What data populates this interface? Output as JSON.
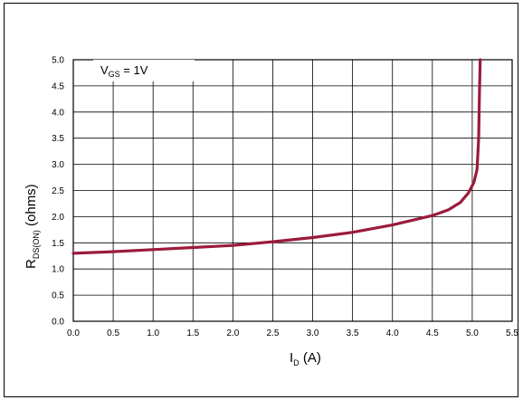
{
  "chart_data": {
    "type": "line",
    "title": "",
    "xlabel": {
      "main": "I",
      "sub": "D",
      "rest": " (A)"
    },
    "ylabel": {
      "main": "R",
      "sub": "DS(ON)",
      "rest": " (ohms)"
    },
    "annotation": {
      "main": "V",
      "sub": "GS",
      "rest": " = 1V"
    },
    "xlim": [
      0,
      5.5
    ],
    "ylim": [
      0,
      5
    ],
    "x_ticks": [
      "0.0",
      "0.5",
      "1.0",
      "1.5",
      "2.0",
      "2.5",
      "3.0",
      "3.5",
      "4.0",
      "4.5",
      "5.0",
      "5.5"
    ],
    "y_ticks": [
      "0.0",
      "0.5",
      "1.0",
      "1.5",
      "2.0",
      "2.5",
      "3.0",
      "3.5",
      "4.0",
      "4.5",
      "5.0"
    ],
    "grid": true,
    "line_color": "#9b1b3c",
    "series": [
      {
        "x": [
          0.0,
          0.5,
          1.0,
          1.5,
          2.0,
          2.5,
          3.0,
          3.5,
          4.0,
          4.5,
          4.7,
          4.85,
          4.95,
          5.02,
          5.06,
          5.08,
          5.09,
          5.1
        ],
        "y": [
          1.3,
          1.33,
          1.37,
          1.41,
          1.45,
          1.52,
          1.6,
          1.7,
          1.84,
          2.02,
          2.13,
          2.27,
          2.45,
          2.65,
          2.9,
          3.5,
          4.3,
          5.0
        ]
      }
    ]
  }
}
